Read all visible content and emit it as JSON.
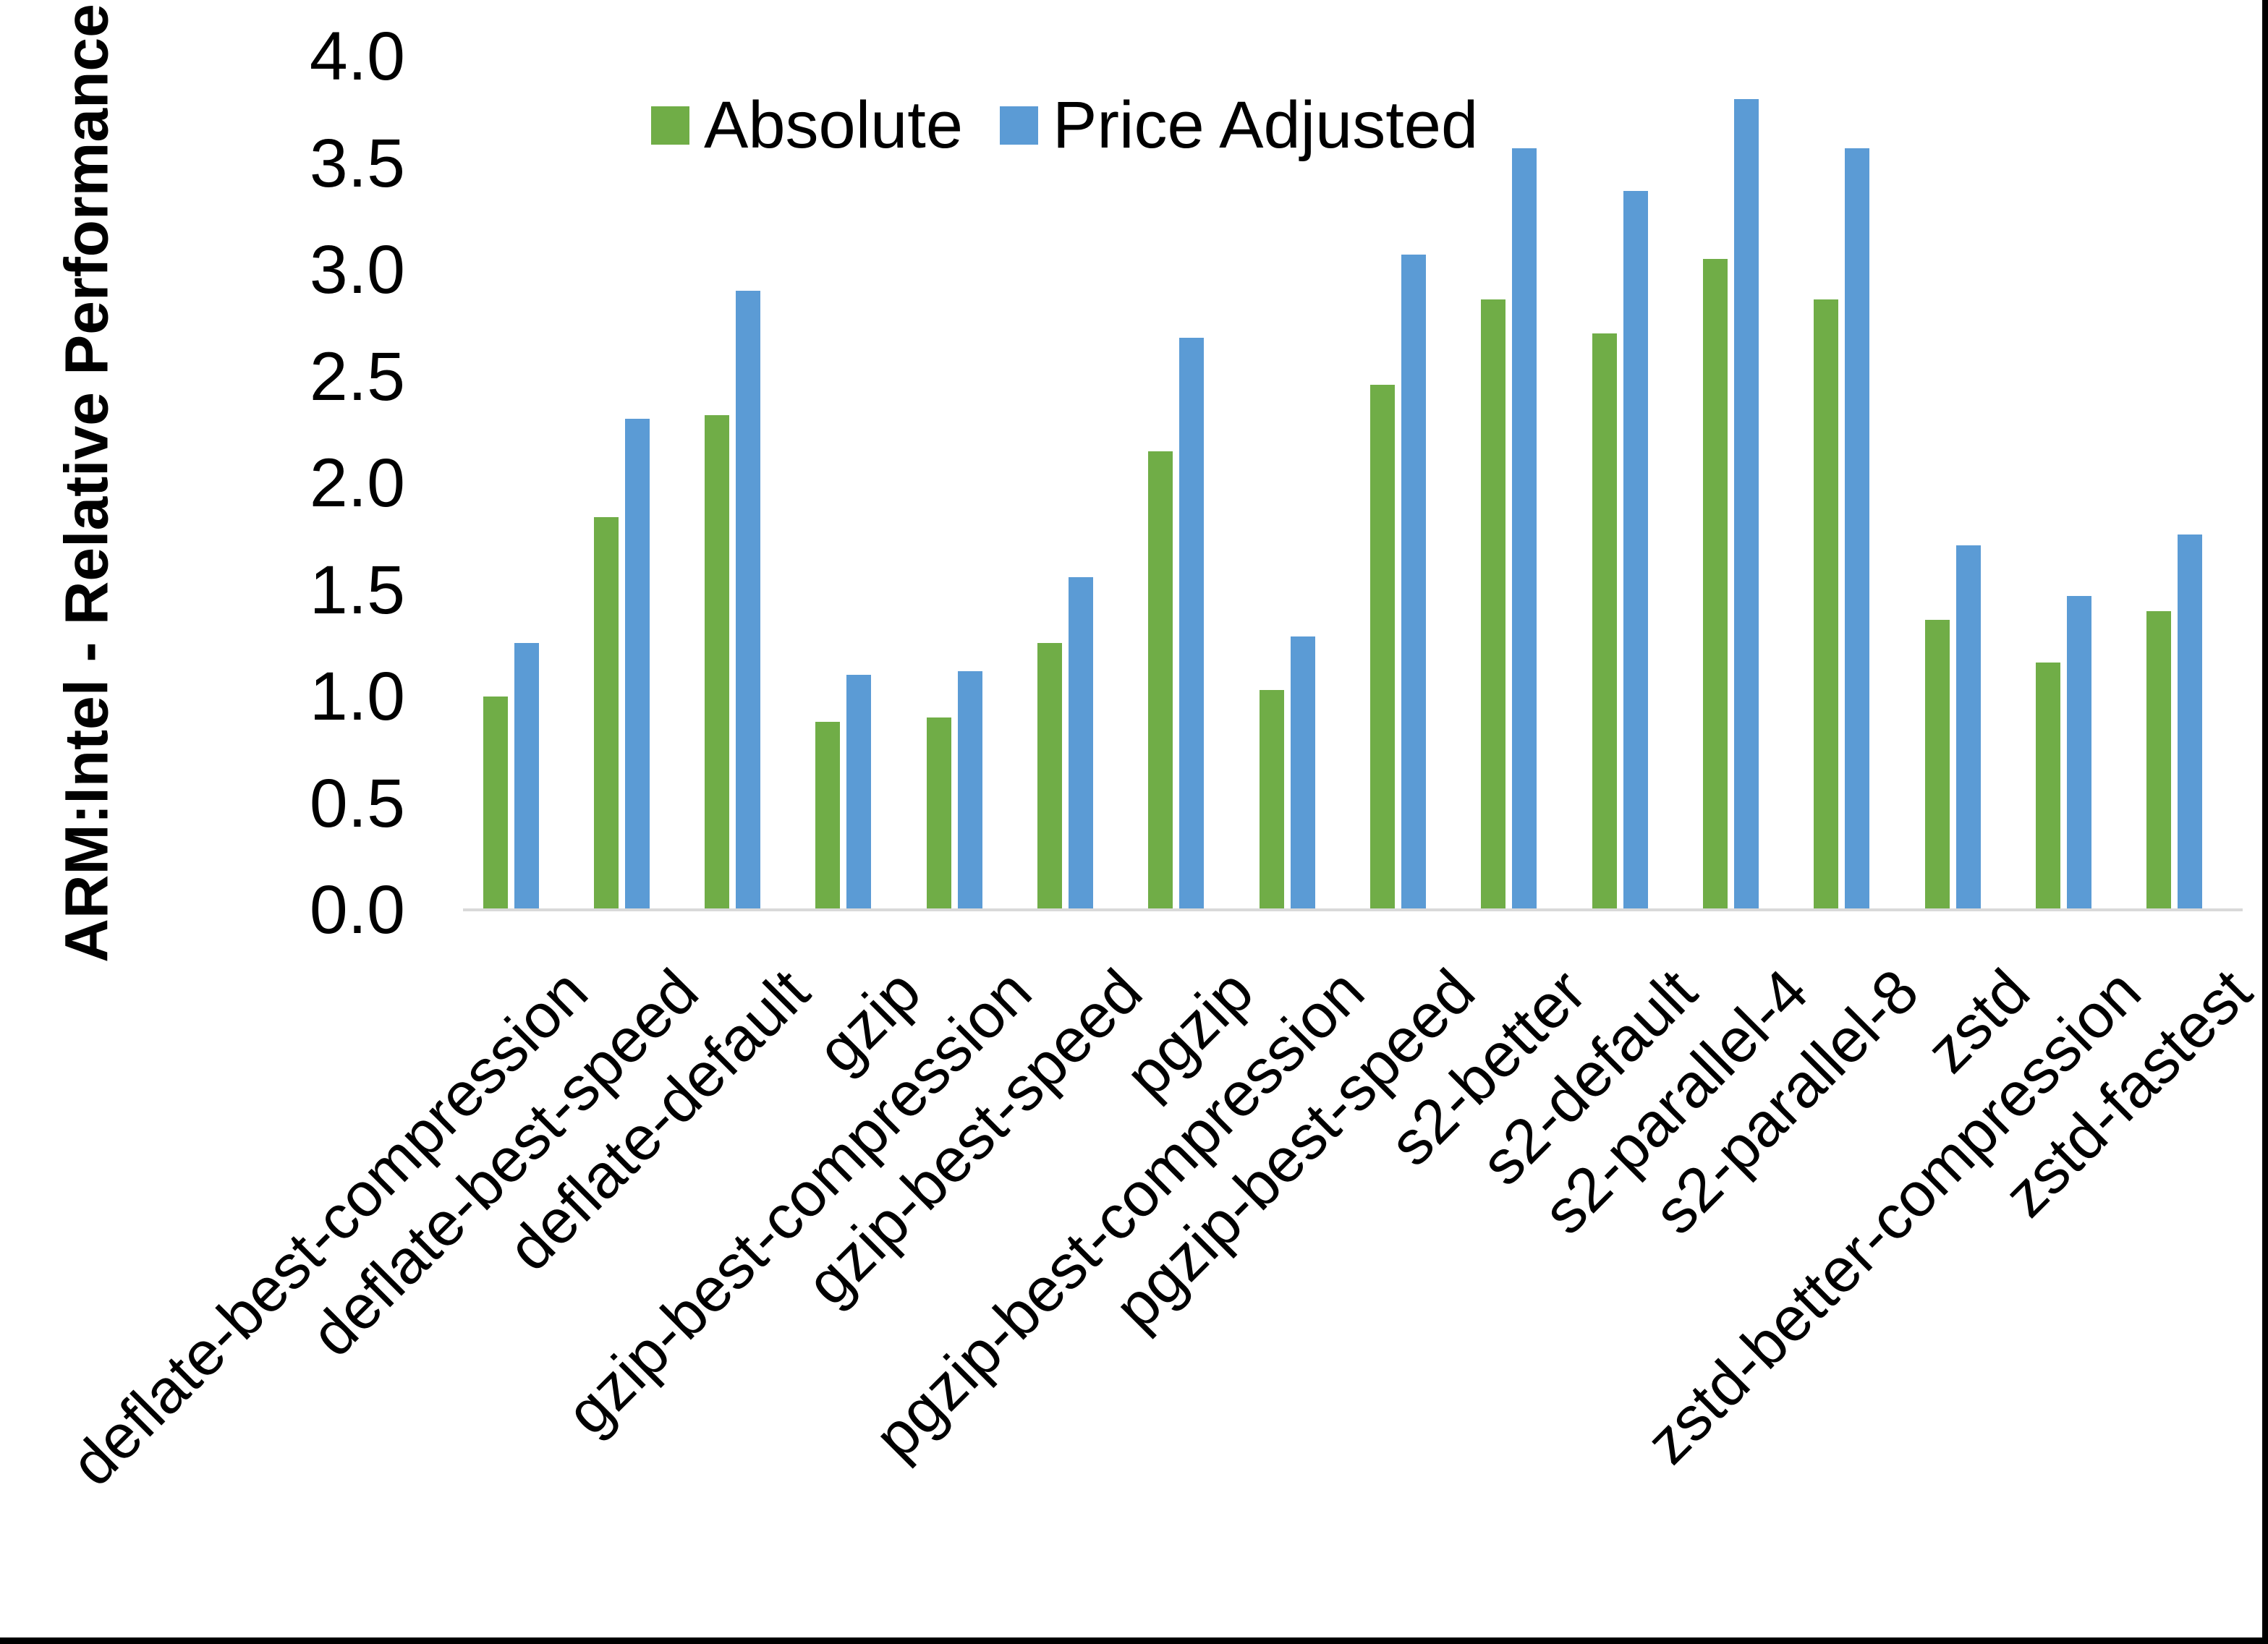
{
  "chart_data": {
    "type": "bar",
    "title": "",
    "xlabel": "",
    "ylabel": "ARM:Intel - Relative Performance",
    "ylim": [
      0.0,
      4.0
    ],
    "ytick_step": 0.5,
    "yticks": [
      "0.0",
      "0.5",
      "1.0",
      "1.5",
      "2.0",
      "2.5",
      "3.0",
      "3.5",
      "4.0"
    ],
    "grid": false,
    "legend_position": "top-center",
    "categories": [
      "deflate-best-compression",
      "deflate-best-speed",
      "deflate-default",
      "gzip",
      "gzip-best-compression",
      "gzip-best-speed",
      "pgzip",
      "pgzip-best-compression",
      "pgzip-best-speed",
      "s2-better",
      "s2-default",
      "s2-parallel-4",
      "s2-parallel-8",
      "zstd",
      "zstd-better-compression",
      "zstd-fastest"
    ],
    "series": [
      {
        "name": "Absolute",
        "color": "#70AD47",
        "values": [
          1.0,
          1.84,
          2.32,
          0.88,
          0.9,
          1.25,
          2.15,
          1.03,
          2.46,
          2.86,
          2.7,
          3.05,
          2.86,
          1.36,
          1.16,
          1.4
        ]
      },
      {
        "name": "Price Adjusted",
        "color": "#5B9BD5",
        "values": [
          1.25,
          2.3,
          2.9,
          1.1,
          1.12,
          1.56,
          2.68,
          1.28,
          3.07,
          3.57,
          3.37,
          3.8,
          3.57,
          1.71,
          1.47,
          1.76
        ]
      }
    ],
    "axis_line_color": "#D9D9D9",
    "text_color": "#000000",
    "background_color": "#FFFFFF",
    "frame_border_color": "#000000"
  }
}
